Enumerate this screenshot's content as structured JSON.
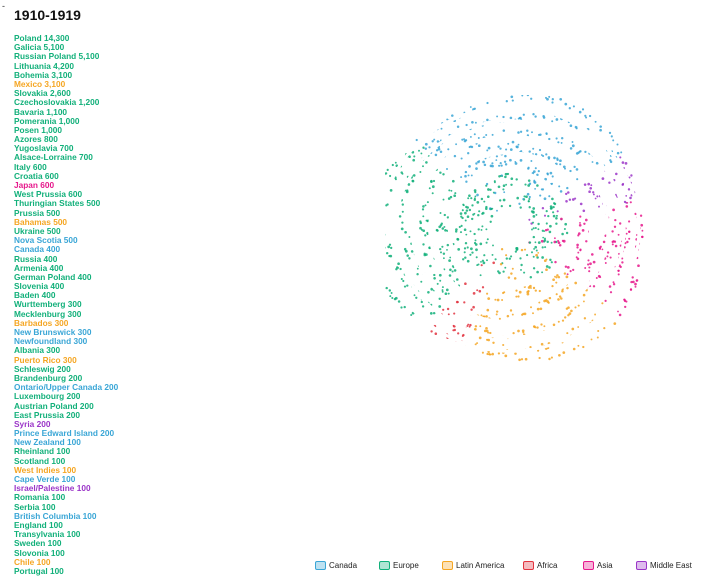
{
  "title": "1910-1919",
  "corner_mark": "-",
  "colors": {
    "Canada": "#3aa6d6",
    "Europe": "#12b07a",
    "Latin America": "#f5a623",
    "Africa": "#e2333f",
    "Asia": "#e6198c",
    "Middle East": "#9b35c8"
  },
  "chart_data": {
    "type": "radial-dot",
    "title": "1910-1919",
    "entries": [
      {
        "label": "Poland 14,300",
        "name": "Poland",
        "value": 14300,
        "region": "Europe"
      },
      {
        "label": "Galicia 5,100",
        "name": "Galicia",
        "value": 5100,
        "region": "Europe"
      },
      {
        "label": "Russian Poland 5,100",
        "name": "Russian Poland",
        "value": 5100,
        "region": "Europe"
      },
      {
        "label": "Lithuania 4,200",
        "name": "Lithuania",
        "value": 4200,
        "region": "Europe"
      },
      {
        "label": "Bohemia 3,100",
        "name": "Bohemia",
        "value": 3100,
        "region": "Europe"
      },
      {
        "label": "Mexico 3,100",
        "name": "Mexico",
        "value": 3100,
        "region": "Latin America"
      },
      {
        "label": "Slovakia 2,600",
        "name": "Slovakia",
        "value": 2600,
        "region": "Europe"
      },
      {
        "label": "Czechoslovakia 1,200",
        "name": "Czechoslovakia",
        "value": 1200,
        "region": "Europe"
      },
      {
        "label": "Bavaria 1,100",
        "name": "Bavaria",
        "value": 1100,
        "region": "Europe"
      },
      {
        "label": "Pomerania 1,000",
        "name": "Pomerania",
        "value": 1000,
        "region": "Europe"
      },
      {
        "label": "Posen 1,000",
        "name": "Posen",
        "value": 1000,
        "region": "Europe"
      },
      {
        "label": "Azores 800",
        "name": "Azores",
        "value": 800,
        "region": "Europe"
      },
      {
        "label": "Yugoslavia 700",
        "name": "Yugoslavia",
        "value": 700,
        "region": "Europe"
      },
      {
        "label": "Alsace-Lorraine 700",
        "name": "Alsace-Lorraine",
        "value": 700,
        "region": "Europe"
      },
      {
        "label": "Italy 600",
        "name": "Italy",
        "value": 600,
        "region": "Europe"
      },
      {
        "label": "Croatia 600",
        "name": "Croatia",
        "value": 600,
        "region": "Europe"
      },
      {
        "label": "Japan 600",
        "name": "Japan",
        "value": 600,
        "region": "Asia"
      },
      {
        "label": "West Prussia 600",
        "name": "West Prussia",
        "value": 600,
        "region": "Europe"
      },
      {
        "label": "Thuringian States 500",
        "name": "Thuringian States",
        "value": 500,
        "region": "Europe"
      },
      {
        "label": "Prussia 500",
        "name": "Prussia",
        "value": 500,
        "region": "Europe"
      },
      {
        "label": "Bahamas 500",
        "name": "Bahamas",
        "value": 500,
        "region": "Latin America"
      },
      {
        "label": "Ukraine 500",
        "name": "Ukraine",
        "value": 500,
        "region": "Europe"
      },
      {
        "label": "Nova Scotia 500",
        "name": "Nova Scotia",
        "value": 500,
        "region": "Canada"
      },
      {
        "label": "Canada 400",
        "name": "Canada",
        "value": 400,
        "region": "Canada"
      },
      {
        "label": "Russia 400",
        "name": "Russia",
        "value": 400,
        "region": "Europe"
      },
      {
        "label": "Armenia 400",
        "name": "Armenia",
        "value": 400,
        "region": "Europe"
      },
      {
        "label": "German Poland 400",
        "name": "German Poland",
        "value": 400,
        "region": "Europe"
      },
      {
        "label": "Slovenia 400",
        "name": "Slovenia",
        "value": 400,
        "region": "Europe"
      },
      {
        "label": "Baden 400",
        "name": "Baden",
        "value": 400,
        "region": "Europe"
      },
      {
        "label": "Wurttemberg 300",
        "name": "Wurttemberg",
        "value": 300,
        "region": "Europe"
      },
      {
        "label": "Mecklenburg 300",
        "name": "Mecklenburg",
        "value": 300,
        "region": "Europe"
      },
      {
        "label": "Barbados 300",
        "name": "Barbados",
        "value": 300,
        "region": "Latin America"
      },
      {
        "label": "New Brunswick 300",
        "name": "New Brunswick",
        "value": 300,
        "region": "Canada"
      },
      {
        "label": "Newfoundland 300",
        "name": "Newfoundland",
        "value": 300,
        "region": "Canada"
      },
      {
        "label": "Albania 300",
        "name": "Albania",
        "value": 300,
        "region": "Europe"
      },
      {
        "label": "Puerto Rico 300",
        "name": "Puerto Rico",
        "value": 300,
        "region": "Latin America"
      },
      {
        "label": "Schleswig 200",
        "name": "Schleswig",
        "value": 200,
        "region": "Europe"
      },
      {
        "label": "Brandenburg 200",
        "name": "Brandenburg",
        "value": 200,
        "region": "Europe"
      },
      {
        "label": "Ontario/Upper Canada 200",
        "name": "Ontario/Upper Canada",
        "value": 200,
        "region": "Canada"
      },
      {
        "label": "Luxembourg 200",
        "name": "Luxembourg",
        "value": 200,
        "region": "Europe"
      },
      {
        "label": "Austrian Poland 200",
        "name": "Austrian Poland",
        "value": 200,
        "region": "Europe"
      },
      {
        "label": "East Prussia 200",
        "name": "East Prussia",
        "value": 200,
        "region": "Europe"
      },
      {
        "label": "Syria 200",
        "name": "Syria",
        "value": 200,
        "region": "Middle East"
      },
      {
        "label": "Prince Edward Island 200",
        "name": "Prince Edward Island",
        "value": 200,
        "region": "Canada"
      },
      {
        "label": "New Zealand 100",
        "name": "New Zealand",
        "value": 100,
        "region": "Canada"
      },
      {
        "label": "Rheinland 100",
        "name": "Rheinland",
        "value": 100,
        "region": "Europe"
      },
      {
        "label": "Scotland 100",
        "name": "Scotland",
        "value": 100,
        "region": "Europe"
      },
      {
        "label": "West Indies 100",
        "name": "West Indies",
        "value": 100,
        "region": "Latin America"
      },
      {
        "label": "Cape Verde 100",
        "name": "Cape Verde",
        "value": 100,
        "region": "Canada"
      },
      {
        "label": "Israel/Palestine 100",
        "name": "Israel/Palestine",
        "value": 100,
        "region": "Middle East"
      },
      {
        "label": "Romania 100",
        "name": "Romania",
        "value": 100,
        "region": "Europe"
      },
      {
        "label": "Serbia 100",
        "name": "Serbia",
        "value": 100,
        "region": "Europe"
      },
      {
        "label": "British Columbia 100",
        "name": "British Columbia",
        "value": 100,
        "region": "Canada"
      },
      {
        "label": "England 100",
        "name": "England",
        "value": 100,
        "region": "Europe"
      },
      {
        "label": "Transylvania 100",
        "name": "Transylvania",
        "value": 100,
        "region": "Europe"
      },
      {
        "label": "Sweden 100",
        "name": "Sweden",
        "value": 100,
        "region": "Europe"
      },
      {
        "label": "Slovonia 100",
        "name": "Slovonia",
        "value": 100,
        "region": "Europe"
      },
      {
        "label": "Chile 100",
        "name": "Chile",
        "value": 100,
        "region": "Latin America"
      },
      {
        "label": "Portugal 100",
        "name": "Portugal",
        "value": 100,
        "region": "Europe"
      }
    ],
    "legend": {
      "position": "bottom-right",
      "items": [
        {
          "label": "Canada",
          "color": "#3aa6d6"
        },
        {
          "label": "Europe",
          "color": "#12b07a"
        },
        {
          "label": "Latin America",
          "color": "#f5a623"
        },
        {
          "label": "Africa",
          "color": "#e2333f"
        },
        {
          "label": "Asia",
          "color": "#e6198c"
        },
        {
          "label": "Middle East",
          "color": "#9b35c8"
        }
      ]
    }
  }
}
